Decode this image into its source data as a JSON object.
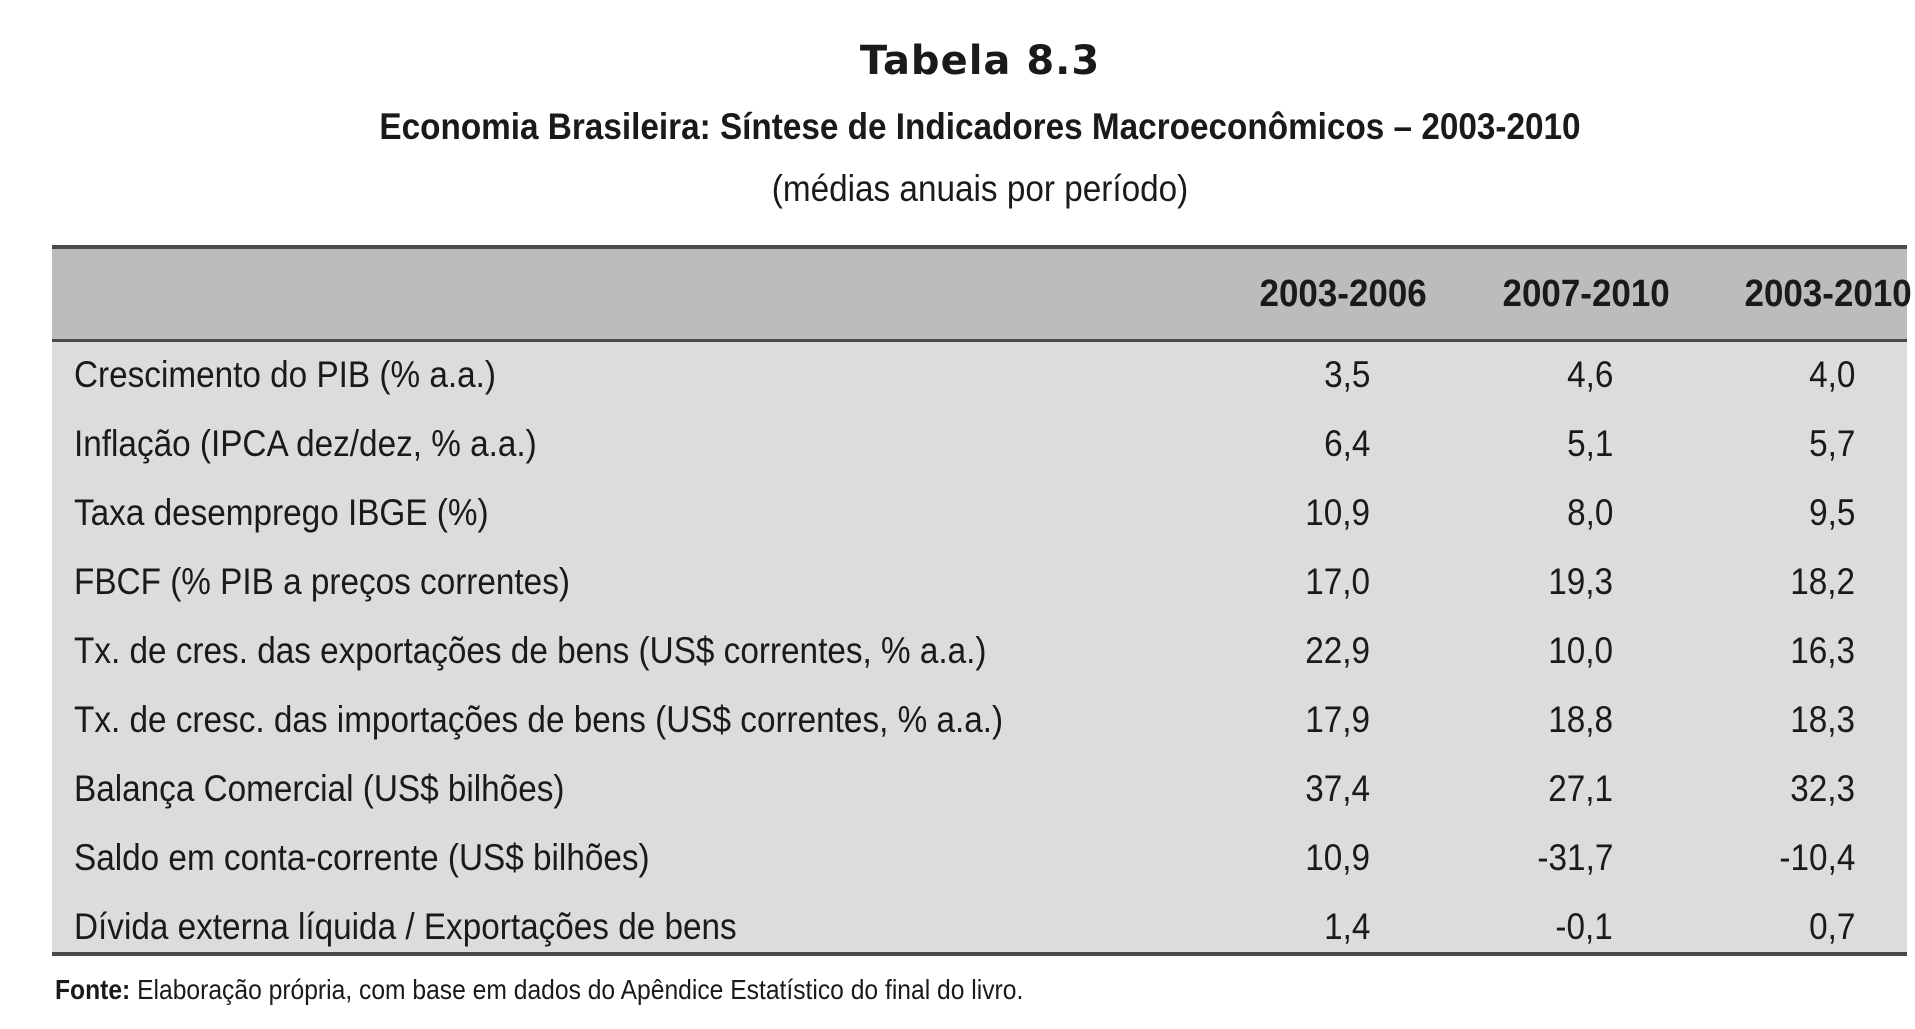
{
  "document": {
    "title": "Tabela 8.3",
    "subtitle": "Economia Brasileira: Síntese de Indicadores Macroeconômicos – 2003-2010",
    "note": "(médias anuais por período)"
  },
  "table": {
    "headers": [
      "",
      "2003-2006",
      "2007-2010",
      "2003-2010"
    ],
    "rows": [
      {
        "label": "Crescimento do PIB (% a.a.)",
        "v1": "3,5",
        "v2": "4,6",
        "v3": "4,0"
      },
      {
        "label": "Inflação (IPCA dez/dez, % a.a.)",
        "v1": "6,4",
        "v2": "5,1",
        "v3": "5,7"
      },
      {
        "label": "Taxa desemprego IBGE (%)",
        "v1": "10,9",
        "v2": "8,0",
        "v3": "9,5"
      },
      {
        "label": "FBCF (% PIB a preços correntes)",
        "v1": "17,0",
        "v2": "19,3",
        "v3": "18,2"
      },
      {
        "label": "Tx. de cres. das exportações de bens (US$ correntes, % a.a.)",
        "v1": "22,9",
        "v2": "10,0",
        "v3": "16,3"
      },
      {
        "label": "Tx. de cresc. das importações de bens (US$ correntes, % a.a.)",
        "v1": "17,9",
        "v2": "18,8",
        "v3": "18,3"
      },
      {
        "label": "Balança Comercial (US$ bilhões)",
        "v1": "37,4",
        "v2": "27,1",
        "v3": "32,3"
      },
      {
        "label": "Saldo em conta-corrente (US$ bilhões)",
        "v1": "10,9",
        "v2": "-31,7",
        "v3": "-10,4"
      },
      {
        "label": "Dívida externa líquida / Exportações de bens",
        "v1": "1,4",
        "v2": "-0,1",
        "v3": "0,7"
      }
    ]
  },
  "source": {
    "label": "Fonte:",
    "text": "Elaboração própria, com base em dados do Apêndice Estatístico do final do livro."
  },
  "colors": {
    "header_bg": "#bcbcbc",
    "body_bg": "#dcdcdc",
    "rule": "#4a4a4a"
  }
}
